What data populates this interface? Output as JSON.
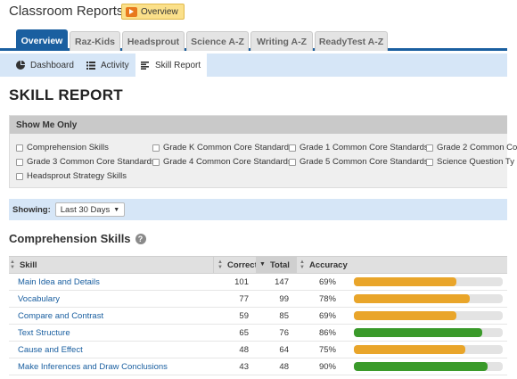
{
  "header": {
    "title": "Classroom Reports",
    "overview_button": "Overview"
  },
  "tabs": [
    "Overview",
    "Raz-Kids",
    "Headsprout",
    "Science A-Z",
    "Writing A-Z",
    "ReadyTest A-Z"
  ],
  "subnav": [
    "Dashboard",
    "Activity",
    "Skill Report"
  ],
  "page_title": "SKILL REPORT",
  "filter": {
    "heading": "Show Me Only",
    "options": [
      "Comprehension Skills",
      "Grade K Common Core Standards",
      "Grade 1 Common Core Standards",
      "Grade 2 Common Co",
      "Grade 3 Common Core Standards",
      "Grade 4 Common Core Standards",
      "Grade 5 Common Core Standards",
      "Science Question Ty",
      "Headsprout Strategy Skills"
    ]
  },
  "showing": {
    "label": "Showing:",
    "value": "Last 30 Days"
  },
  "section": {
    "title": "Comprehension Skills",
    "help": "?"
  },
  "table": {
    "headers": {
      "skill": "Skill",
      "correct": "Correct",
      "total": "Total",
      "accuracy": "Accuracy"
    },
    "rows": [
      {
        "skill": "Main Idea and Details",
        "correct": "101",
        "total": "147",
        "accuracy": "69%",
        "pct": 69,
        "status": "warn"
      },
      {
        "skill": "Vocabulary",
        "correct": "77",
        "total": "99",
        "accuracy": "78%",
        "pct": 78,
        "status": "warn"
      },
      {
        "skill": "Compare and Contrast",
        "correct": "59",
        "total": "85",
        "accuracy": "69%",
        "pct": 69,
        "status": "warn"
      },
      {
        "skill": "Text Structure",
        "correct": "65",
        "total": "76",
        "accuracy": "86%",
        "pct": 86,
        "status": "good"
      },
      {
        "skill": "Cause and Effect",
        "correct": "48",
        "total": "64",
        "accuracy": "75%",
        "pct": 75,
        "status": "warn"
      },
      {
        "skill": "Make Inferences and Draw Conclusions",
        "correct": "43",
        "total": "48",
        "accuracy": "90%",
        "pct": 90,
        "status": "good"
      }
    ]
  },
  "colors": {
    "accent": "#1a5fa0",
    "warn": "#e9a52a",
    "good": "#3a9a2a"
  }
}
